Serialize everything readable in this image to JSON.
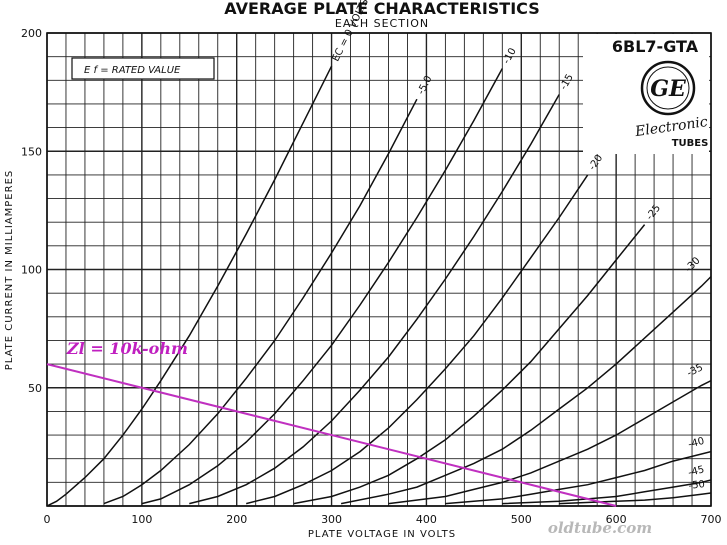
{
  "header": {
    "title": "AVERAGE PLATE CHARACTERISTICS",
    "subtitle": "EACH SECTION"
  },
  "brand": {
    "model": "6BL7-GTA",
    "logo_text": "GE",
    "line1": "Electronic",
    "line2": "TUBES"
  },
  "note_box": "E f = RATED VALUE",
  "watermark": "oldtube.com",
  "colors": {
    "grid": "#222222",
    "curves": "#111111",
    "load_line": "#c030c0"
  },
  "chart_data": {
    "type": "line",
    "xlabel": "PLATE VOLTAGE IN VOLTS",
    "ylabel": "PLATE CURRENT IN MILLIAMPERES",
    "xlim": [
      0,
      700
    ],
    "ylim": [
      0,
      200
    ],
    "xticks": [
      "0",
      "100",
      "200",
      "300",
      "400",
      "500",
      "600",
      "700"
    ],
    "yticks": [
      "50",
      "100",
      "150",
      "200"
    ],
    "grid": true,
    "series": [
      {
        "name": "EC = 0 VOLTS",
        "x": [
          0,
          10,
          20,
          40,
          60,
          80,
          100,
          120,
          150,
          180,
          210,
          240,
          270,
          300
        ],
        "y": [
          0,
          2,
          5,
          12,
          20,
          30,
          41,
          53,
          72,
          93,
          115,
          138,
          162,
          186
        ]
      },
      {
        "name": "-5.0",
        "x": [
          60,
          80,
          100,
          120,
          150,
          180,
          210,
          240,
          270,
          300,
          330,
          360,
          390
        ],
        "y": [
          1,
          4,
          9,
          15,
          26,
          39,
          54,
          70,
          88,
          107,
          127,
          149,
          172
        ]
      },
      {
        "name": "-10",
        "x": [
          100,
          120,
          150,
          180,
          210,
          240,
          270,
          300,
          330,
          360,
          390,
          420,
          450,
          480
        ],
        "y": [
          1,
          3,
          9,
          17,
          27,
          39,
          53,
          68,
          85,
          103,
          122,
          142,
          163,
          185
        ]
      },
      {
        "name": "-15",
        "x": [
          150,
          180,
          210,
          240,
          270,
          300,
          330,
          360,
          390,
          420,
          450,
          480,
          510,
          540
        ],
        "y": [
          1,
          4,
          9,
          16,
          25,
          36,
          49,
          63,
          79,
          96,
          114,
          133,
          153,
          174
        ]
      },
      {
        "name": "-20",
        "x": [
          210,
          240,
          270,
          300,
          330,
          360,
          390,
          420,
          450,
          480,
          510,
          540,
          570
        ],
        "y": [
          1,
          4,
          9,
          15,
          23,
          33,
          45,
          58,
          72,
          88,
          105,
          122,
          140
        ]
      },
      {
        "name": "-25",
        "x": [
          260,
          300,
          330,
          360,
          390,
          420,
          450,
          480,
          510,
          540,
          570,
          600,
          630
        ],
        "y": [
          1,
          4,
          8,
          13,
          20,
          28,
          38,
          49,
          61,
          75,
          89,
          104,
          119
        ]
      },
      {
        "name": "-30",
        "x": [
          310,
          360,
          390,
          420,
          450,
          480,
          510,
          540,
          570,
          600,
          630,
          660,
          690,
          700
        ],
        "y": [
          1,
          5,
          8,
          13,
          18,
          24,
          32,
          41,
          50,
          60,
          71,
          82,
          93,
          97
        ]
      },
      {
        "name": "-35",
        "x": [
          360,
          420,
          450,
          480,
          510,
          540,
          570,
          600,
          630,
          660,
          690,
          700
        ],
        "y": [
          1,
          4,
          7,
          10,
          14,
          19,
          24,
          30,
          37,
          44,
          51,
          53
        ]
      },
      {
        "name": "-40",
        "x": [
          420,
          480,
          510,
          540,
          570,
          600,
          630,
          660,
          690,
          700
        ],
        "y": [
          1,
          3,
          5,
          7,
          9,
          12,
          15,
          19,
          22,
          23
        ]
      },
      {
        "name": "-45",
        "x": [
          480,
          540,
          570,
          600,
          630,
          660,
          690,
          700
        ],
        "y": [
          1,
          2,
          3,
          4,
          6,
          8,
          10,
          11
        ]
      },
      {
        "name": "-50",
        "x": [
          540,
          600,
          630,
          660,
          690,
          700
        ],
        "y": [
          1,
          2,
          2.5,
          3.5,
          5,
          5.5
        ]
      }
    ],
    "load_line": {
      "label": "Zl = 10k-ohm",
      "x": [
        0,
        600
      ],
      "y": [
        60,
        0
      ]
    }
  }
}
